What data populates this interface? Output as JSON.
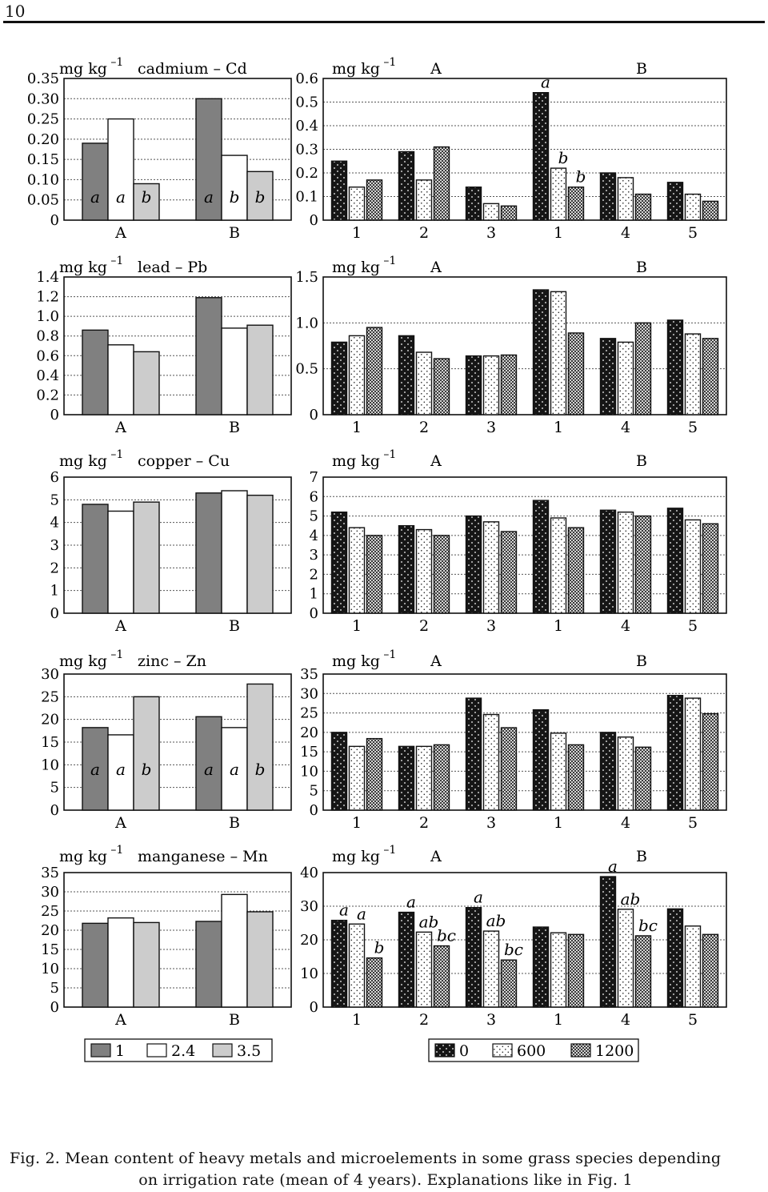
{
  "page_number": "10",
  "unit": "mg kg",
  "unit_exp": "–1",
  "caption": {
    "line1": "Fig. 2. Mean content of heavy metals and microelements in some grass species depending",
    "line2": "on irrigation rate (mean of 4 years). Explanations like in Fig. 1"
  },
  "colors": {
    "series_1": "#808080",
    "series_2_4": "#ffffff",
    "series_3_5": "#cccccc",
    "series_0": "#1a1a1a",
    "series_600": "#ffffff",
    "series_1200": "#9a9a9a"
  },
  "chart_data": [
    {
      "type": "bar",
      "element": "cadmium – Cd",
      "categories": [
        "A",
        "B"
      ],
      "series": [
        {
          "name": "1",
          "values": [
            0.19,
            0.3
          ]
        },
        {
          "name": "2.4",
          "values": [
            0.25,
            0.16
          ]
        },
        {
          "name": "3.5",
          "values": [
            0.09,
            0.12
          ]
        }
      ],
      "annotations": [
        [
          "a",
          "a",
          "b"
        ],
        [
          "a",
          "b",
          "b"
        ]
      ],
      "ylim": [
        0,
        0.35
      ],
      "yticks": [
        "0",
        "0.05",
        "0.10",
        "0.15",
        "0.20",
        "0.25",
        "0.30",
        "0.35"
      ]
    },
    {
      "type": "bar",
      "group_labels": [
        "A",
        "B"
      ],
      "categories": [
        "1",
        "2",
        "3",
        "1",
        "4",
        "5"
      ],
      "series": [
        {
          "name": "0",
          "values": [
            0.25,
            0.29,
            0.14,
            0.54,
            0.2,
            0.16
          ]
        },
        {
          "name": "600",
          "values": [
            0.14,
            0.17,
            0.07,
            0.22,
            0.18,
            0.11
          ]
        },
        {
          "name": "1200",
          "values": [
            0.17,
            0.31,
            0.06,
            0.14,
            0.11,
            0.08
          ]
        }
      ],
      "annotations": [
        [
          "",
          "",
          ""
        ],
        [
          "",
          "",
          ""
        ],
        [
          "",
          "",
          ""
        ],
        [
          "a",
          "b",
          "b"
        ],
        [
          "",
          "",
          ""
        ],
        [
          "",
          "",
          ""
        ]
      ],
      "ylim": [
        0,
        0.6
      ],
      "yticks": [
        "0",
        "0.1",
        "0.2",
        "0.3",
        "0.4",
        "0.5",
        "0.6"
      ]
    },
    {
      "type": "bar",
      "element": "lead – Pb",
      "categories": [
        "A",
        "B"
      ],
      "series": [
        {
          "name": "1",
          "values": [
            0.86,
            1.19
          ]
        },
        {
          "name": "2.4",
          "values": [
            0.71,
            0.88
          ]
        },
        {
          "name": "3.5",
          "values": [
            0.64,
            0.91
          ]
        }
      ],
      "ylim": [
        0,
        1.4
      ],
      "yticks": [
        "0",
        "0.2",
        "0.4",
        "0.6",
        "0.8",
        "1.0",
        "1.2",
        "1.4"
      ]
    },
    {
      "type": "bar",
      "group_labels": [
        "A",
        "B"
      ],
      "categories": [
        "1",
        "2",
        "3",
        "1",
        "4",
        "5"
      ],
      "series": [
        {
          "name": "0",
          "values": [
            0.79,
            0.86,
            0.64,
            1.36,
            0.83,
            1.03
          ]
        },
        {
          "name": "600",
          "values": [
            0.86,
            0.68,
            0.64,
            1.34,
            0.79,
            0.88
          ]
        },
        {
          "name": "1200",
          "values": [
            0.95,
            0.61,
            0.65,
            0.89,
            1.0,
            0.83
          ]
        }
      ],
      "ylim": [
        0,
        1.5
      ],
      "yticks": [
        "0",
        "0.5",
        "1.0",
        "1.5"
      ]
    },
    {
      "type": "bar",
      "element": "copper – Cu",
      "categories": [
        "A",
        "B"
      ],
      "series": [
        {
          "name": "1",
          "values": [
            4.8,
            5.3
          ]
        },
        {
          "name": "2.4",
          "values": [
            4.5,
            5.4
          ]
        },
        {
          "name": "3.5",
          "values": [
            4.9,
            5.2
          ]
        }
      ],
      "ylim": [
        0,
        6
      ],
      "yticks": [
        "0",
        "1",
        "2",
        "3",
        "4",
        "5",
        "6"
      ]
    },
    {
      "type": "bar",
      "group_labels": [
        "A",
        "B"
      ],
      "categories": [
        "1",
        "2",
        "3",
        "1",
        "4",
        "5"
      ],
      "series": [
        {
          "name": "0",
          "values": [
            5.2,
            4.5,
            5.0,
            5.8,
            5.3,
            5.4
          ]
        },
        {
          "name": "600",
          "values": [
            4.4,
            4.3,
            4.7,
            4.9,
            5.2,
            4.8
          ]
        },
        {
          "name": "1200",
          "values": [
            4.0,
            4.0,
            4.2,
            4.4,
            5.0,
            4.6
          ]
        }
      ],
      "ylim": [
        0,
        7
      ],
      "yticks": [
        "0",
        "1",
        "2",
        "3",
        "4",
        "5",
        "6",
        "7"
      ]
    },
    {
      "type": "bar",
      "element": "zinc – Zn",
      "categories": [
        "A",
        "B"
      ],
      "series": [
        {
          "name": "1",
          "values": [
            18.2,
            20.6
          ]
        },
        {
          "name": "2.4",
          "values": [
            16.6,
            18.2
          ]
        },
        {
          "name": "3.5",
          "values": [
            25.0,
            27.8
          ]
        }
      ],
      "annotations": [
        [
          "a",
          "a",
          "b"
        ],
        [
          "a",
          "a",
          "b"
        ]
      ],
      "ylim": [
        0,
        30
      ],
      "yticks": [
        "0",
        "5",
        "10",
        "15",
        "20",
        "25",
        "30"
      ]
    },
    {
      "type": "bar",
      "group_labels": [
        "A",
        "B"
      ],
      "categories": [
        "1",
        "2",
        "3",
        "1",
        "4",
        "5"
      ],
      "series": [
        {
          "name": "0",
          "values": [
            20.0,
            16.4,
            28.8,
            25.8,
            20.0,
            29.5
          ]
        },
        {
          "name": "600",
          "values": [
            16.4,
            16.4,
            24.6,
            19.8,
            18.8,
            28.8
          ]
        },
        {
          "name": "1200",
          "values": [
            18.4,
            16.8,
            21.2,
            16.8,
            16.2,
            24.8
          ]
        }
      ],
      "ylim": [
        0,
        35
      ],
      "yticks": [
        "0",
        "5",
        "10",
        "15",
        "20",
        "25",
        "30",
        "35"
      ]
    },
    {
      "type": "bar",
      "element": "manganese – Mn",
      "categories": [
        "A",
        "B"
      ],
      "series": [
        {
          "name": "1",
          "values": [
            21.8,
            22.3
          ]
        },
        {
          "name": "2.4",
          "values": [
            23.2,
            29.3
          ]
        },
        {
          "name": "3.5",
          "values": [
            22.0,
            24.8
          ]
        }
      ],
      "ylim": [
        0,
        35
      ],
      "yticks": [
        "0",
        "5",
        "10",
        "15",
        "20",
        "25",
        "30",
        "35"
      ]
    },
    {
      "type": "bar",
      "group_labels": [
        "A",
        "B"
      ],
      "categories": [
        "1",
        "2",
        "3",
        "1",
        "4",
        "5"
      ],
      "series": [
        {
          "name": "0",
          "values": [
            25.8,
            28.2,
            29.6,
            23.8,
            38.8,
            29.2
          ]
        },
        {
          "name": "600",
          "values": [
            24.7,
            22.3,
            22.6,
            22.1,
            29.1,
            24.1
          ]
        },
        {
          "name": "1200",
          "values": [
            14.6,
            18.2,
            14.0,
            21.6,
            21.2,
            21.6
          ]
        }
      ],
      "annotations": [
        [
          "a",
          "a",
          "b"
        ],
        [
          "a",
          "ab",
          "bc"
        ],
        [
          "a",
          "ab",
          "bc"
        ],
        [
          "",
          "",
          ""
        ],
        [
          "a",
          "ab",
          "bc"
        ],
        [
          "",
          "",
          ""
        ]
      ],
      "ylim": [
        0,
        40
      ],
      "yticks": [
        "0",
        "10",
        "20",
        "30",
        "40"
      ]
    }
  ],
  "legend_left": [
    "1",
    "2.4",
    "3.5"
  ],
  "legend_right": [
    "0",
    "600",
    "1200"
  ]
}
